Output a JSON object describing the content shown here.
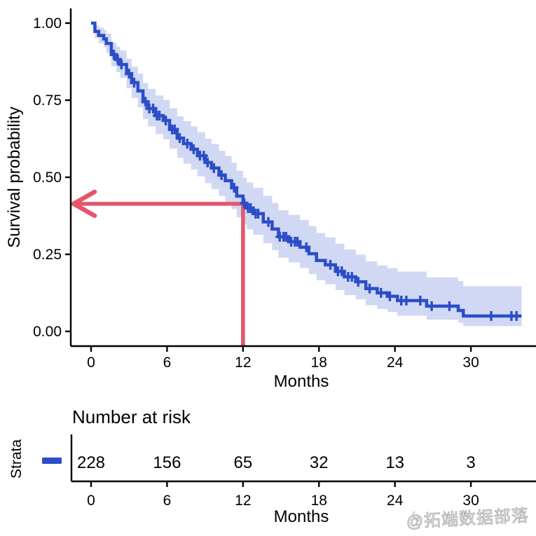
{
  "watermark": "@拓端数据部落",
  "colors": {
    "curve": "#2B4EC8",
    "band": "rgba(43,78,200,0.22)",
    "arrow": "#E4566E",
    "axis": "#000000"
  },
  "chart_data": {
    "type": "line",
    "subtype": "kaplan-meier-step",
    "title": "",
    "xlabel": "Months",
    "ylabel": "Survival probability",
    "legend_position": "none",
    "grid": false,
    "xlim": [
      0,
      34
    ],
    "ylim": [
      0,
      1
    ],
    "x_ticks": [
      0,
      6,
      12,
      18,
      24,
      30
    ],
    "y_ticks": [
      1.0,
      0.75,
      0.5,
      0.25,
      0.0
    ],
    "steps": [
      [
        0.0,
        1.0,
        1.0,
        1.0
      ],
      [
        0.3,
        0.973,
        0.952,
        0.993
      ],
      [
        0.6,
        0.96,
        0.935,
        0.985
      ],
      [
        1.0,
        0.949,
        0.922,
        0.977
      ],
      [
        1.2,
        0.934,
        0.903,
        0.966
      ],
      [
        1.6,
        0.898,
        0.86,
        0.937
      ],
      [
        2.0,
        0.882,
        0.841,
        0.924
      ],
      [
        2.3,
        0.866,
        0.823,
        0.911
      ],
      [
        2.8,
        0.836,
        0.789,
        0.884
      ],
      [
        3.2,
        0.807,
        0.757,
        0.859
      ],
      [
        3.7,
        0.78,
        0.727,
        0.836
      ],
      [
        4.1,
        0.745,
        0.689,
        0.805
      ],
      [
        4.5,
        0.723,
        0.665,
        0.786
      ],
      [
        5.1,
        0.7,
        0.64,
        0.765
      ],
      [
        5.7,
        0.684,
        0.623,
        0.751
      ],
      [
        6.2,
        0.655,
        0.593,
        0.724
      ],
      [
        6.8,
        0.627,
        0.563,
        0.698
      ],
      [
        7.3,
        0.609,
        0.544,
        0.682
      ],
      [
        7.9,
        0.591,
        0.525,
        0.665
      ],
      [
        8.4,
        0.57,
        0.503,
        0.646
      ],
      [
        9.0,
        0.548,
        0.481,
        0.625
      ],
      [
        9.5,
        0.53,
        0.462,
        0.608
      ],
      [
        10.1,
        0.507,
        0.439,
        0.586
      ],
      [
        10.6,
        0.489,
        0.42,
        0.569
      ],
      [
        11.1,
        0.466,
        0.397,
        0.547
      ],
      [
        11.5,
        0.439,
        0.37,
        0.521
      ],
      [
        12.0,
        0.416,
        0.347,
        0.499
      ],
      [
        12.3,
        0.4,
        0.331,
        0.483
      ],
      [
        12.8,
        0.382,
        0.313,
        0.466
      ],
      [
        13.6,
        0.355,
        0.286,
        0.44
      ],
      [
        14.3,
        0.332,
        0.264,
        0.417
      ],
      [
        14.8,
        0.307,
        0.239,
        0.393
      ],
      [
        15.6,
        0.291,
        0.224,
        0.378
      ],
      [
        16.5,
        0.273,
        0.206,
        0.361
      ],
      [
        17.2,
        0.252,
        0.186,
        0.341
      ],
      [
        17.8,
        0.23,
        0.166,
        0.319
      ],
      [
        18.5,
        0.216,
        0.153,
        0.305
      ],
      [
        19.3,
        0.195,
        0.134,
        0.284
      ],
      [
        20.0,
        0.177,
        0.118,
        0.266
      ],
      [
        20.9,
        0.161,
        0.104,
        0.249
      ],
      [
        21.7,
        0.139,
        0.085,
        0.227
      ],
      [
        22.6,
        0.125,
        0.073,
        0.214
      ],
      [
        23.4,
        0.114,
        0.063,
        0.205
      ],
      [
        24.2,
        0.1,
        0.051,
        0.194
      ],
      [
        26.5,
        0.082,
        0.038,
        0.175
      ],
      [
        29.0,
        0.068,
        0.028,
        0.163
      ],
      [
        29.4,
        0.05,
        0.017,
        0.147
      ],
      [
        34.0,
        0.05,
        0.017,
        0.147
      ]
    ],
    "censor_times": [
      1.8,
      2.1,
      2.4,
      3.0,
      3.4,
      4.3,
      4.6,
      4.9,
      5.2,
      5.4,
      5.9,
      6.4,
      6.6,
      7.0,
      7.6,
      8.1,
      8.6,
      8.9,
      9.2,
      9.7,
      10.3,
      11.3,
      12.1,
      12.4,
      12.6,
      13.0,
      13.2,
      14.0,
      14.9,
      15.2,
      15.4,
      15.8,
      16.1,
      16.3,
      17.0,
      18.9,
      19.5,
      19.8,
      20.3,
      20.6,
      21.1,
      22.0,
      22.9,
      23.6,
      24.5,
      24.9,
      26.0,
      26.9,
      28.3,
      31.6,
      33.2,
      33.6
    ],
    "annotation_arrow": {
      "time": 12,
      "survival": 0.414
    }
  },
  "risk_table": {
    "title": "Number at risk",
    "strata_label": "Strata",
    "xlabel": "Months",
    "times": [
      0,
      6,
      12,
      18,
      24,
      30
    ],
    "counts": [
      "228",
      "156",
      "65",
      "32",
      "13",
      "3"
    ]
  }
}
